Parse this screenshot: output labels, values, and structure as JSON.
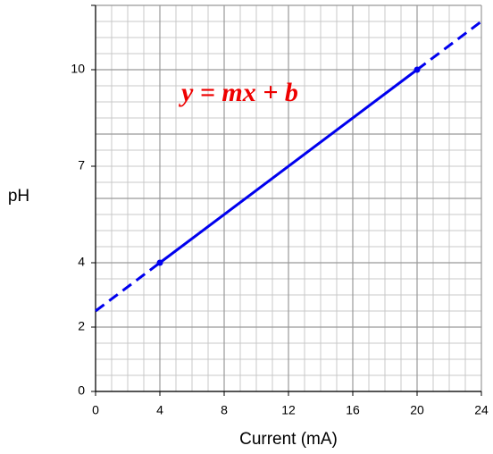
{
  "chart_data": {
    "type": "line",
    "title": "y = mx + b",
    "x_label": "Current (mA)",
    "y_label": "pH",
    "xlim": [
      0,
      24
    ],
    "ylim": [
      0,
      12
    ],
    "xticks": [
      0,
      4,
      8,
      12,
      16,
      20,
      24
    ],
    "yticks": [
      0,
      2,
      4,
      7,
      10
    ],
    "grid": true,
    "minor_grid": {
      "x_step": 1,
      "y_step": 0.5
    },
    "major_grid": {
      "x_step": 4,
      "y_step": 2
    },
    "color": "#0000ee",
    "title_color": "#ee0000",
    "lines": [
      {
        "style": "dashed",
        "x": [
          0,
          4
        ],
        "y": [
          2.5,
          4
        ]
      },
      {
        "style": "solid",
        "x": [
          4,
          20
        ],
        "y": [
          4,
          10
        ]
      },
      {
        "style": "dashed",
        "x": [
          20,
          24
        ],
        "y": [
          10,
          11.5
        ]
      }
    ],
    "points": {
      "x": [
        4,
        20
      ],
      "y": [
        4,
        10
      ]
    }
  }
}
